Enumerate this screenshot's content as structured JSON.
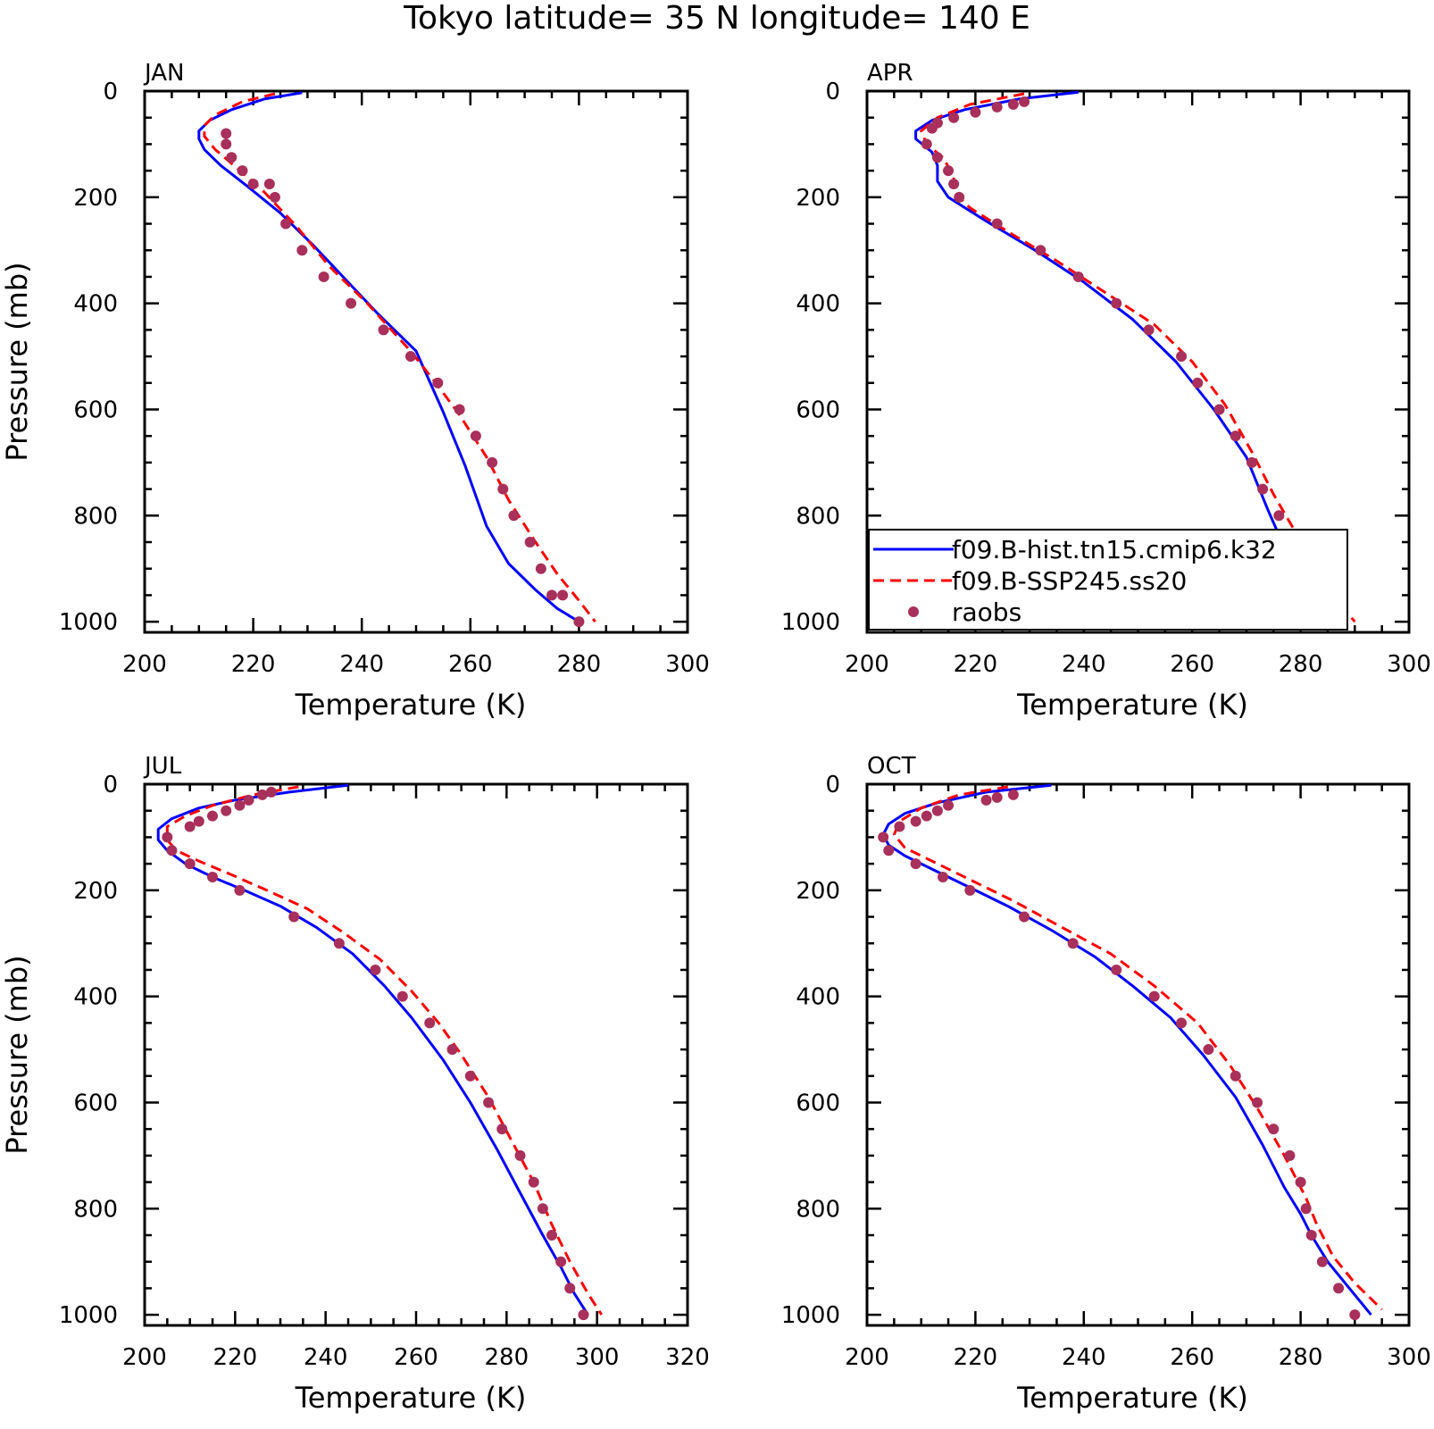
{
  "title": "Tokyo  latitude= 35 N longitude= 140 E",
  "colors": {
    "model_hist": "#0000ff",
    "model_ssp": "#ff0000",
    "raobs": "#a8305a"
  },
  "legend": {
    "placement": "inside APR panel, lower-left",
    "entries": [
      {
        "label": "f09.B-hist.tn15.cmip6.k32",
        "style": "solid",
        "color": "#0000ff"
      },
      {
        "label": "f09.B-SSP245.ss20",
        "style": "dashed",
        "color": "#ff0000"
      },
      {
        "label": "raobs",
        "style": "marker",
        "color": "#a8305a"
      }
    ]
  },
  "chart_data": [
    {
      "type": "line",
      "panel": "JAN",
      "xlabel": "Temperature (K)",
      "ylabel": "Pressure (mb)",
      "xlim": [
        200,
        300
      ],
      "ylim": [
        1020,
        0
      ],
      "xticks": [
        200,
        220,
        240,
        260,
        280,
        300
      ],
      "yticks": [
        0,
        200,
        400,
        600,
        800,
        1000
      ],
      "series": [
        {
          "name": "f09.B-hist.tn15.cmip6.k32",
          "style": "line",
          "x": [
            229,
            222,
            216,
            212,
            210,
            210,
            211,
            214,
            219,
            225,
            231,
            237,
            243,
            250,
            255,
            259,
            263,
            267,
            272,
            276,
            280
          ],
          "y": [
            3,
            15,
            35,
            55,
            75,
            90,
            110,
            140,
            180,
            230,
            290,
            355,
            420,
            490,
            605,
            705,
            820,
            890,
            940,
            975,
            1000
          ]
        },
        {
          "name": "f09.B-SSP245.ss20",
          "style": "dashed",
          "x": [
            224,
            218,
            213,
            211,
            211,
            213,
            217,
            222,
            228,
            234,
            241,
            249,
            254,
            258,
            263,
            267,
            272,
            276,
            280,
            283
          ],
          "y": [
            5,
            20,
            45,
            65,
            85,
            110,
            145,
            190,
            255,
            330,
            400,
            490,
            555,
            610,
            690,
            770,
            850,
            910,
            960,
            1000
          ]
        },
        {
          "name": "raobs",
          "style": "marker",
          "x": [
            215,
            215,
            216,
            218,
            220,
            223,
            224,
            226,
            229,
            233,
            238,
            244,
            249,
            254,
            258,
            261,
            264,
            266,
            268,
            271,
            273,
            275,
            277,
            280
          ],
          "y": [
            80,
            100,
            125,
            150,
            175,
            175,
            200,
            250,
            300,
            350,
            400,
            450,
            500,
            550,
            600,
            650,
            700,
            750,
            800,
            850,
            900,
            950,
            950,
            1000
          ]
        }
      ]
    },
    {
      "type": "line",
      "panel": "APR",
      "xlabel": "Temperature (K)",
      "ylabel": "",
      "xlim": [
        200,
        300
      ],
      "ylim": [
        1020,
        0
      ],
      "xticks": [
        200,
        220,
        240,
        260,
        280,
        300
      ],
      "yticks": [
        0,
        200,
        400,
        600,
        800,
        1000
      ],
      "series": [
        {
          "name": "f09.B-hist.tn15.cmip6.k32",
          "style": "line",
          "x": [
            239,
            228,
            218,
            212,
            209,
            209,
            212,
            213,
            213,
            215,
            222,
            231,
            240,
            249,
            257,
            264,
            270,
            274,
            277,
            280,
            283,
            287
          ],
          "y": [
            2,
            15,
            35,
            55,
            75,
            90,
            115,
            140,
            170,
            200,
            245,
            300,
            360,
            430,
            510,
            600,
            690,
            790,
            860,
            910,
            950,
            1000
          ]
        },
        {
          "name": "f09.B-SSP245.ss20",
          "style": "dashed",
          "x": [
            229,
            219,
            213,
            210,
            211,
            214,
            216,
            216,
            219,
            226,
            235,
            244,
            253,
            260,
            266,
            271,
            275,
            279,
            283,
            286,
            290
          ],
          "y": [
            5,
            25,
            50,
            75,
            100,
            125,
            160,
            190,
            220,
            265,
            320,
            380,
            440,
            510,
            590,
            680,
            760,
            830,
            900,
            950,
            1000
          ]
        },
        {
          "name": "raobs",
          "style": "marker",
          "x": [
            229,
            227,
            224,
            220,
            216,
            213,
            212,
            211,
            213,
            215,
            216,
            217,
            224,
            232,
            239,
            246,
            252,
            258,
            261,
            265,
            268,
            271,
            273,
            276,
            278,
            280,
            284,
            287
          ],
          "y": [
            20,
            25,
            30,
            40,
            50,
            60,
            70,
            100,
            125,
            150,
            175,
            200,
            250,
            300,
            350,
            400,
            450,
            500,
            550,
            600,
            650,
            700,
            750,
            800,
            850,
            900,
            950,
            1000
          ]
        }
      ]
    },
    {
      "type": "line",
      "panel": "JUL",
      "xlabel": "Temperature (K)",
      "ylabel": "Pressure (mb)",
      "xlim": [
        200,
        320
      ],
      "ylim": [
        1020,
        0
      ],
      "xticks": [
        200,
        220,
        240,
        260,
        280,
        300,
        320
      ],
      "yticks": [
        0,
        200,
        400,
        600,
        800,
        1000
      ],
      "series": [
        {
          "name": "f09.B-hist.tn15.cmip6.k32",
          "style": "line",
          "x": [
            245,
            232,
            220,
            212,
            206,
            203,
            203,
            205,
            209,
            215,
            222,
            230,
            238,
            246,
            253,
            259,
            266,
            272,
            278,
            283,
            288,
            292,
            295,
            298
          ],
          "y": [
            2,
            15,
            30,
            45,
            65,
            85,
            105,
            125,
            150,
            175,
            200,
            230,
            270,
            320,
            380,
            440,
            520,
            600,
            690,
            770,
            850,
            910,
            960,
            1000
          ]
        },
        {
          "name": "f09.B-SSP245.ss20",
          "style": "dashed",
          "x": [
            234,
            224,
            215,
            209,
            205,
            205,
            207,
            212,
            219,
            227,
            236,
            244,
            252,
            259,
            265,
            270,
            276,
            281,
            286,
            290,
            294,
            298,
            301
          ],
          "y": [
            5,
            20,
            40,
            60,
            80,
            105,
            125,
            145,
            170,
            200,
            235,
            280,
            330,
            390,
            450,
            510,
            590,
            670,
            750,
            830,
            900,
            960,
            1000
          ]
        },
        {
          "name": "raobs",
          "style": "marker",
          "x": [
            228,
            226,
            223,
            221,
            218,
            215,
            212,
            210,
            205,
            206,
            210,
            215,
            221,
            233,
            243,
            251,
            257,
            263,
            268,
            272,
            276,
            279,
            283,
            286,
            288,
            290,
            292,
            294,
            297
          ],
          "y": [
            15,
            20,
            30,
            40,
            50,
            60,
            70,
            80,
            100,
            125,
            150,
            175,
            200,
            250,
            300,
            350,
            400,
            450,
            500,
            550,
            600,
            650,
            700,
            750,
            800,
            850,
            900,
            950,
            1000
          ]
        }
      ]
    },
    {
      "type": "line",
      "panel": "OCT",
      "xlabel": "Temperature (K)",
      "ylabel": "",
      "xlim": [
        200,
        300
      ],
      "ylim": [
        1020,
        0
      ],
      "xticks": [
        200,
        220,
        240,
        260,
        280,
        300
      ],
      "yticks": [
        0,
        200,
        400,
        600,
        800,
        1000
      ],
      "series": [
        {
          "name": "f09.B-hist.tn15.cmip6.k32",
          "style": "line",
          "x": [
            234,
            222,
            213,
            207,
            204,
            203,
            204,
            207,
            212,
            218,
            226,
            234,
            242,
            249,
            256,
            262,
            268,
            273,
            277,
            280,
            282,
            285,
            289,
            293
          ],
          "y": [
            2,
            15,
            35,
            55,
            75,
            95,
            115,
            135,
            160,
            190,
            230,
            275,
            325,
            380,
            440,
            510,
            590,
            680,
            760,
            810,
            850,
            900,
            950,
            1000
          ]
        },
        {
          "name": "f09.B-SSP245.ss20",
          "style": "dashed",
          "x": [
            226,
            217,
            210,
            206,
            205,
            207,
            212,
            219,
            227,
            236,
            245,
            253,
            261,
            267,
            272,
            277,
            281,
            283,
            286,
            290,
            295
          ],
          "y": [
            5,
            20,
            45,
            70,
            95,
            120,
            145,
            180,
            220,
            270,
            320,
            380,
            450,
            530,
            610,
            700,
            780,
            830,
            890,
            940,
            990
          ]
        },
        {
          "name": "raobs",
          "style": "marker",
          "x": [
            227,
            224,
            222,
            215,
            213,
            211,
            209,
            206,
            203,
            204,
            209,
            214,
            219,
            229,
            238,
            246,
            253,
            258,
            263,
            268,
            272,
            275,
            278,
            280,
            281,
            282,
            284,
            287,
            290
          ],
          "y": [
            20,
            25,
            30,
            40,
            50,
            60,
            70,
            80,
            100,
            125,
            150,
            175,
            200,
            250,
            300,
            350,
            400,
            450,
            500,
            550,
            600,
            650,
            700,
            750,
            800,
            850,
            900,
            950,
            1000
          ]
        }
      ]
    }
  ]
}
